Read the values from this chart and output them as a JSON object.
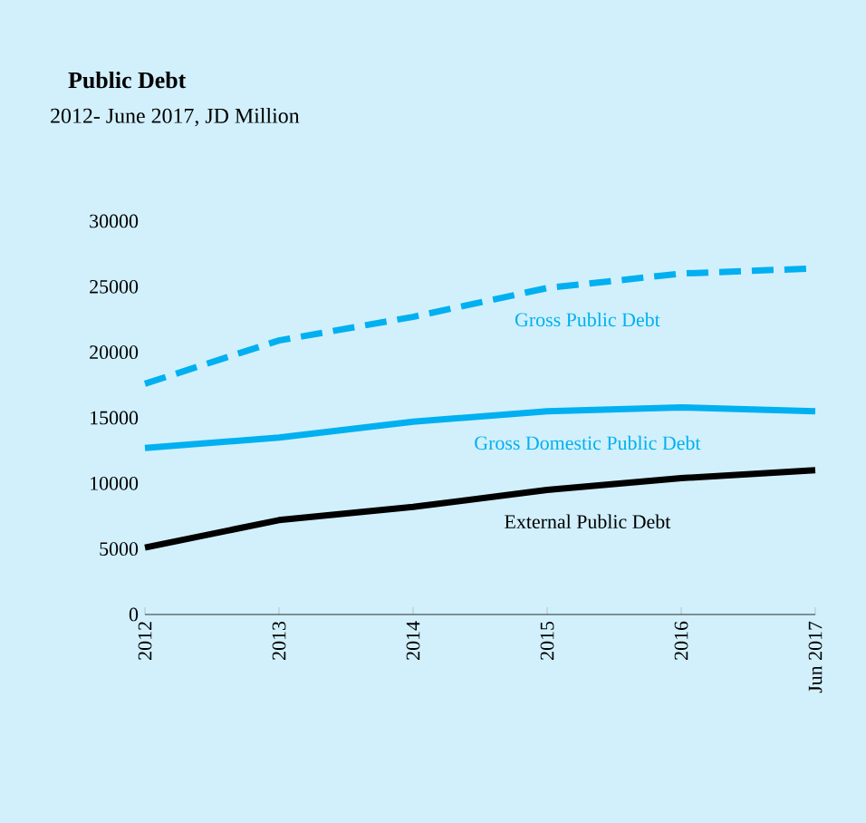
{
  "chart_data": {
    "type": "line",
    "title": "Public Debt",
    "subtitle": "2012- June 2017, JD Million",
    "categories": [
      "2012",
      "2013",
      "2014",
      "2015",
      "2016",
      "Jun 2017"
    ],
    "series": [
      {
        "name": "Gross Public Debt",
        "color": "#00b0f0",
        "line_style": "dashed",
        "values": [
          17600,
          20900,
          22700,
          24900,
          26000,
          26400
        ]
      },
      {
        "name": "Gross Domestic Public Debt",
        "color": "#00b0f0",
        "line_style": "solid",
        "values": [
          12700,
          13500,
          14700,
          15500,
          15800,
          15500
        ]
      },
      {
        "name": "External Public Debt",
        "color": "#000000",
        "line_style": "solid",
        "values": [
          5100,
          7200,
          8200,
          9500,
          10400,
          11000
        ]
      }
    ],
    "ylim": [
      0,
      30000
    ],
    "yticks": [
      0,
      5000,
      10000,
      15000,
      20000,
      25000,
      30000
    ],
    "marker": "none"
  }
}
